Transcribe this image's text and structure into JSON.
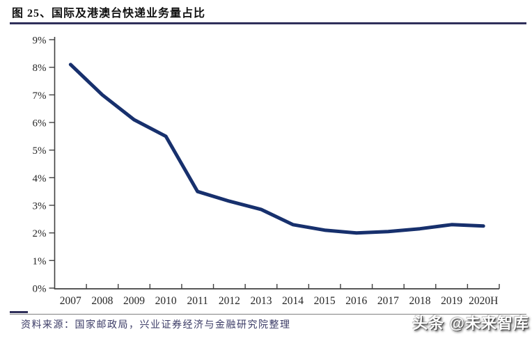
{
  "figure": {
    "title": "图 25、国际及港澳台快递业务量占比",
    "source_note": "资料来源：国家邮政局，兴业证券经济与金融研究院整理",
    "watermark": "头条 @未来智库"
  },
  "colors": {
    "series_line": "#17306d",
    "title_rule": "#2f2f5a",
    "axis": "#404040",
    "tick_label": "#262626",
    "source_text": "#3b3b66",
    "footer_rule": "#808080",
    "watermark_fill": "#ffffff"
  },
  "chart_data": {
    "type": "line",
    "title": "国际及港澳台快递业务量占比",
    "categories": [
      "2007",
      "2008",
      "2009",
      "2010",
      "2011",
      "2012",
      "2013",
      "2014",
      "2015",
      "2016",
      "2017",
      "2018",
      "2019",
      "2020H"
    ],
    "series": [
      {
        "name": "国际及港澳台快递业务量占比",
        "values": [
          8.1,
          7.0,
          6.1,
          5.5,
          3.5,
          3.15,
          2.85,
          2.3,
          2.1,
          2.0,
          2.05,
          2.15,
          2.3,
          2.25
        ]
      }
    ],
    "xlabel": "",
    "ylabel": "",
    "ylim": [
      0,
      9
    ],
    "ytick_step": 1,
    "ytick_suffix": "%",
    "grid": false,
    "legend_position": "none"
  }
}
